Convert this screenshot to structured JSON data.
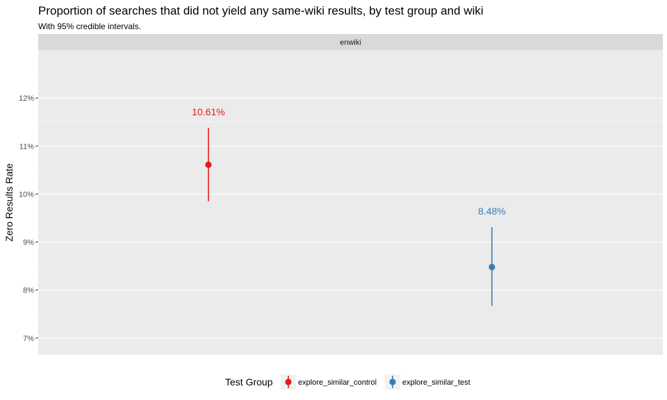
{
  "chart_data": {
    "type": "scatter",
    "title": "Proportion of searches that did not yield any same-wiki results, by test group and wiki",
    "subtitle": "With 95% credible intervals.",
    "facet_label": "enwiki",
    "xlabel": "",
    "ylabel": "Zero Results Rate",
    "ylim": [
      6.65,
      13.0
    ],
    "y_ticks": [
      7,
      8,
      9,
      10,
      11,
      12
    ],
    "y_tick_labels": [
      "7%",
      "8%",
      "9%",
      "10%",
      "11%",
      "12%"
    ],
    "grid": true,
    "legend": {
      "title": "Test Group",
      "placement": "bottom"
    },
    "series": [
      {
        "name": "explore_similar_control",
        "value": 10.61,
        "lower": 9.85,
        "upper": 11.38,
        "label": "10.61%",
        "color": "#E41A1C"
      },
      {
        "name": "explore_similar_test",
        "value": 8.48,
        "lower": 7.67,
        "upper": 9.31,
        "label": "8.48%",
        "color": "#377EB8"
      }
    ]
  }
}
